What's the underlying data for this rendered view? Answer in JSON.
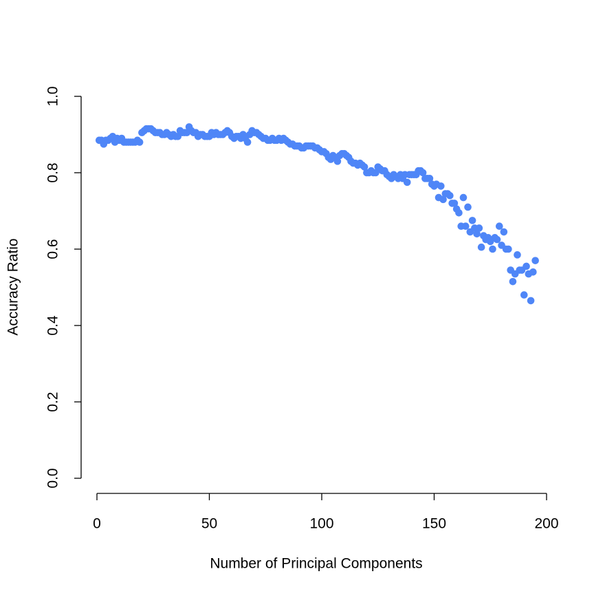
{
  "chart_data": {
    "type": "scatter",
    "x_label": "Number of Principal Components",
    "y_label": "Accuracy Ratio",
    "xlim": [
      0,
      200
    ],
    "xticks": [
      0,
      50,
      100,
      150,
      200
    ],
    "ylim": [
      0,
      1
    ],
    "yticks": [
      {
        "value": 0,
        "label": "0.0"
      },
      0.2,
      0.4,
      0.6,
      0.8,
      {
        "value": 1,
        "label": "1.0"
      }
    ],
    "series": [
      {
        "color": "#4f86f7",
        "x": [
          1,
          2,
          3,
          4,
          5,
          6,
          7,
          8,
          9,
          10,
          11,
          12,
          13,
          14,
          15,
          16,
          17,
          18,
          19,
          20,
          21,
          22,
          23,
          24,
          25,
          26,
          27,
          28,
          29,
          30,
          31,
          32,
          33,
          34,
          35,
          36,
          37,
          38,
          39,
          40,
          41,
          42,
          43,
          44,
          45,
          46,
          47,
          48,
          49,
          50,
          51,
          52,
          53,
          54,
          55,
          56,
          57,
          58,
          59,
          60,
          61,
          62,
          63,
          64,
          65,
          66,
          67,
          68,
          69,
          70,
          71,
          72,
          73,
          74,
          75,
          76,
          77,
          78,
          79,
          80,
          81,
          82,
          83,
          84,
          85,
          86,
          87,
          88,
          89,
          90,
          91,
          92,
          93,
          94,
          95,
          96,
          97,
          98,
          99,
          100,
          101,
          102,
          103,
          104,
          105,
          106,
          107,
          108,
          109,
          110,
          111,
          112,
          113,
          114,
          115,
          116,
          117,
          118,
          119,
          120,
          121,
          122,
          123,
          124,
          125,
          126,
          127,
          128,
          129,
          130,
          131,
          132,
          133,
          134,
          135,
          136,
          137,
          138,
          139,
          140,
          141,
          142,
          143,
          144,
          145,
          146,
          147,
          148,
          149,
          150,
          151,
          152,
          153,
          154,
          155,
          156,
          157,
          158,
          159,
          160,
          161,
          162,
          163,
          164,
          165,
          166,
          167,
          168,
          169,
          170,
          171,
          172,
          173,
          174,
          175,
          176,
          177,
          178,
          179,
          180,
          181,
          182,
          183,
          184,
          185,
          186,
          187,
          188,
          189,
          190,
          191,
          192,
          193,
          194,
          195
        ],
        "values": [
          0.885,
          0.885,
          0.875,
          0.885,
          0.885,
          0.89,
          0.895,
          0.88,
          0.89,
          0.885,
          0.89,
          0.88,
          0.88,
          0.88,
          0.88,
          0.88,
          0.88,
          0.885,
          0.88,
          0.905,
          0.91,
          0.915,
          0.915,
          0.915,
          0.91,
          0.905,
          0.905,
          0.905,
          0.9,
          0.9,
          0.905,
          0.9,
          0.895,
          0.9,
          0.895,
          0.895,
          0.91,
          0.905,
          0.905,
          0.905,
          0.92,
          0.91,
          0.905,
          0.905,
          0.895,
          0.9,
          0.9,
          0.895,
          0.895,
          0.895,
          0.905,
          0.9,
          0.905,
          0.9,
          0.9,
          0.9,
          0.905,
          0.91,
          0.905,
          0.895,
          0.89,
          0.895,
          0.895,
          0.89,
          0.9,
          0.89,
          0.88,
          0.9,
          0.91,
          0.905,
          0.905,
          0.9,
          0.895,
          0.89,
          0.89,
          0.885,
          0.885,
          0.89,
          0.885,
          0.885,
          0.89,
          0.885,
          0.89,
          0.885,
          0.88,
          0.875,
          0.875,
          0.87,
          0.87,
          0.87,
          0.865,
          0.865,
          0.87,
          0.87,
          0.87,
          0.87,
          0.865,
          0.865,
          0.86,
          0.855,
          0.855,
          0.85,
          0.84,
          0.835,
          0.845,
          0.84,
          0.83,
          0.845,
          0.85,
          0.85,
          0.845,
          0.84,
          0.83,
          0.825,
          0.825,
          0.82,
          0.825,
          0.82,
          0.815,
          0.8,
          0.8,
          0.805,
          0.8,
          0.8,
          0.815,
          0.81,
          0.805,
          0.805,
          0.795,
          0.79,
          0.785,
          0.795,
          0.79,
          0.785,
          0.795,
          0.785,
          0.795,
          0.775,
          0.795,
          0.795,
          0.795,
          0.795,
          0.805,
          0.805,
          0.8,
          0.785,
          0.785,
          0.785,
          0.77,
          0.765,
          0.77,
          0.735,
          0.765,
          0.73,
          0.745,
          0.745,
          0.74,
          0.72,
          0.72,
          0.705,
          0.695,
          0.66,
          0.735,
          0.66,
          0.71,
          0.645,
          0.675,
          0.655,
          0.64,
          0.655,
          0.605,
          0.635,
          0.625,
          0.63,
          0.62,
          0.6,
          0.63,
          0.625,
          0.66,
          0.61,
          0.645,
          0.6,
          0.6,
          0.545,
          0.515,
          0.535,
          0.585,
          0.545,
          0.545,
          0.48,
          0.555,
          0.535,
          0.465,
          0.54,
          0.57
        ]
      }
    ]
  }
}
